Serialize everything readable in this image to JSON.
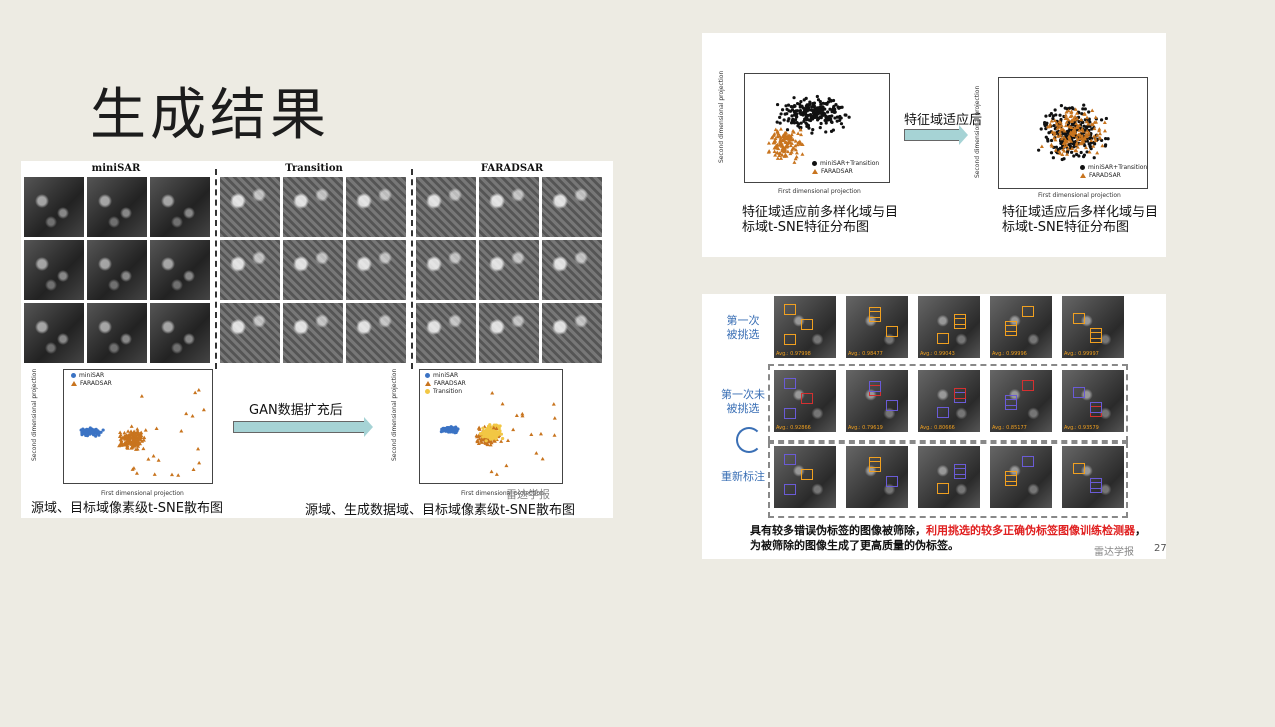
{
  "slide": {
    "title": "生成结果"
  },
  "left_panel": {
    "headers": [
      "miniSAR",
      "Transition",
      "FARADSAR"
    ],
    "arrow_label": "GAN数据扩充后",
    "caption_left": "源域、目标域像素级t-SNE散布图",
    "caption_right": "源域、生成数据域、目标域像素级t-SNE散布图",
    "watermark": "雷达学报",
    "plot_left": {
      "ylabel": "Second dimensional projection",
      "xlabel": "First dimensional projection",
      "legend": [
        "miniSAR",
        "FARADSAR"
      ],
      "xticks": [
        "−20000",
        "−10000",
        "0",
        "10000",
        "20000",
        "30000",
        "40000"
      ],
      "yticks": [
        "20000",
        "15000",
        "10000",
        "5000",
        "0",
        "−5000",
        "−10000",
        "−15000"
      ]
    },
    "plot_right": {
      "ylabel": "Second dimensional projection",
      "xlabel": "First dimensional projection",
      "legend": [
        "miniSAR",
        "FARADSAR",
        "Transition"
      ],
      "xticks": [
        "−20000",
        "−10000",
        "0",
        "10000",
        "20000",
        "30000",
        "40000"
      ],
      "yticks": [
        "20000",
        "15000",
        "10000",
        "5000",
        "0",
        "−5000",
        "−10000",
        "−15000"
      ]
    }
  },
  "top_right_panel": {
    "arrow_label": "特征域适应后",
    "caption_left": "特征域适应前多样化域与目标域t-SNE特征分布图",
    "caption_left_l1": "特征域适应前多样化域与目",
    "caption_left_l2": "标域t-SNE特征分布图",
    "caption_right_l1": "特征域适应后多样化域与目",
    "caption_right_l2": "标域t-SNE特征分布图",
    "plot_left": {
      "ylabel": "Second dimensional projection",
      "xlabel": "First dimensional projection",
      "legend": [
        "miniSAR+Transition",
        "FARADSAR"
      ],
      "xticks": [
        "−300",
        "−200",
        "−100",
        "0",
        "100",
        "200",
        "300"
      ],
      "yticks": [
        "200",
        "150",
        "100",
        "50",
        "0",
        "−50",
        "−100",
        "−150",
        "−200"
      ]
    },
    "plot_right": {
      "ylabel": "Second dimensional projection",
      "xlabel": "First dimensional projection",
      "legend": [
        "miniSAR+Transition",
        "FARADSAR"
      ],
      "xticks": [
        "−200",
        "−100",
        "0",
        "100",
        "200"
      ],
      "yticks": [
        "200",
        "150",
        "100",
        "50",
        "0",
        "−50",
        "−100",
        "−150",
        "−200"
      ]
    }
  },
  "bottom_right_panel": {
    "row_labels": [
      "第一次\n被挑选",
      "第一次未\n被挑选",
      "重新标注"
    ],
    "row1_avgs": [
      "Avg.: 0.97998",
      "Avg.: 0.98477",
      "Avg.: 0.99043",
      "Avg.: 0.99996",
      "Avg.: 0.99997"
    ],
    "row2_avgs": [
      "Avg.: 0.92866",
      "Avg.: 0.79619",
      "Avg.: 0.80666",
      "Avg.: 0.85177",
      "Avg.: 0.93579"
    ],
    "note_pre": "具有较多错误伪标签的图像被筛除，",
    "note_red": "利用挑选的较多正确伪标签图像训练检测器",
    "note_post": "，为被筛除的图像生成了更高质量的伪标签。",
    "watermark": "雷达学报",
    "page_number": "27"
  },
  "colors": {
    "background": "#edebe3",
    "minisar_blue": "#3b73c4",
    "faradsar_orange": "#c8741e",
    "transition_yellow": "#f2c744",
    "arrow_fill": "#a6d3d5",
    "highlight_red": "#e02020"
  }
}
